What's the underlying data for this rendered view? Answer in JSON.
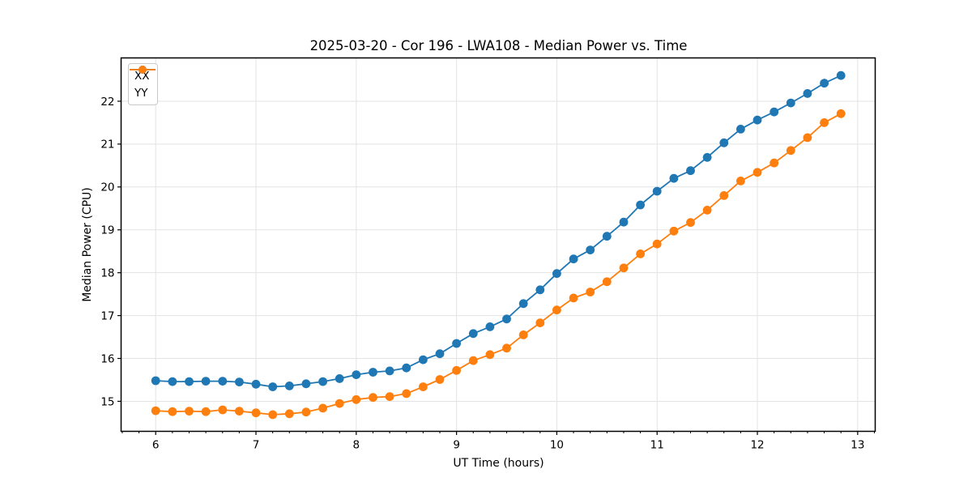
{
  "chart_data": {
    "type": "line",
    "title": "2025-03-20 - Cor 196 - LWA108 - Median Power vs. Time",
    "xlabel": "UT Time (hours)",
    "ylabel": "Median Power (CPU)",
    "xlim": [
      5.655,
      13.175
    ],
    "ylim": [
      14.3,
      23.01
    ],
    "xticks": [
      6,
      7,
      8,
      9,
      10,
      11,
      12,
      13
    ],
    "yticks": [
      15,
      16,
      17,
      18,
      19,
      20,
      21,
      22
    ],
    "x_minor_tick_step": 0.16667,
    "grid": {
      "show": true,
      "axis": "both-major",
      "color": "#e3e3e3"
    },
    "legend_position": "upper-left",
    "x": [
      6,
      6.1667,
      6.3333,
      6.5,
      6.6667,
      6.8333,
      7,
      7.1667,
      7.3333,
      7.5,
      7.6667,
      7.8333,
      8,
      8.1667,
      8.3333,
      8.5,
      8.6667,
      8.8333,
      9,
      9.1667,
      9.3333,
      9.5,
      9.6667,
      9.8333,
      10,
      10.1667,
      10.3333,
      10.5,
      10.6667,
      10.8333,
      11,
      11.1667,
      11.3333,
      11.5,
      11.6667,
      11.8333,
      12,
      12.1667,
      12.3333,
      12.5,
      12.6667,
      12.8333
    ],
    "series": [
      {
        "name": "XX",
        "color": "#1f77b4",
        "marker": "circle",
        "values": [
          15.48,
          15.46,
          15.46,
          15.47,
          15.47,
          15.45,
          15.4,
          15.34,
          15.36,
          15.41,
          15.46,
          15.53,
          15.62,
          15.68,
          15.71,
          15.78,
          15.97,
          16.11,
          16.35,
          16.58,
          16.74,
          16.92,
          17.28,
          17.6,
          17.98,
          18.32,
          18.53,
          18.85,
          19.18,
          19.58,
          19.9,
          20.2,
          20.38,
          20.69,
          21.03,
          21.35,
          21.56,
          21.75,
          21.96,
          22.18,
          22.42,
          22.6
        ]
      },
      {
        "name": "YY",
        "color": "#ff7f0e",
        "marker": "circle",
        "values": [
          14.78,
          14.76,
          14.77,
          14.76,
          14.8,
          14.77,
          14.73,
          14.69,
          14.71,
          14.75,
          14.84,
          14.95,
          15.04,
          15.09,
          15.11,
          15.18,
          15.34,
          15.51,
          15.72,
          15.95,
          16.09,
          16.24,
          16.55,
          16.83,
          17.13,
          17.41,
          17.55,
          17.79,
          18.11,
          18.44,
          18.67,
          18.97,
          19.17,
          19.46,
          19.8,
          20.14,
          20.34,
          20.56,
          20.85,
          21.15,
          21.5,
          21.71
        ]
      }
    ]
  },
  "style": {
    "background": "#ffffff",
    "spine_color": "#000000",
    "tick_color": "#000000",
    "grid_color": "#e3e3e3",
    "text_color": "#000000"
  }
}
